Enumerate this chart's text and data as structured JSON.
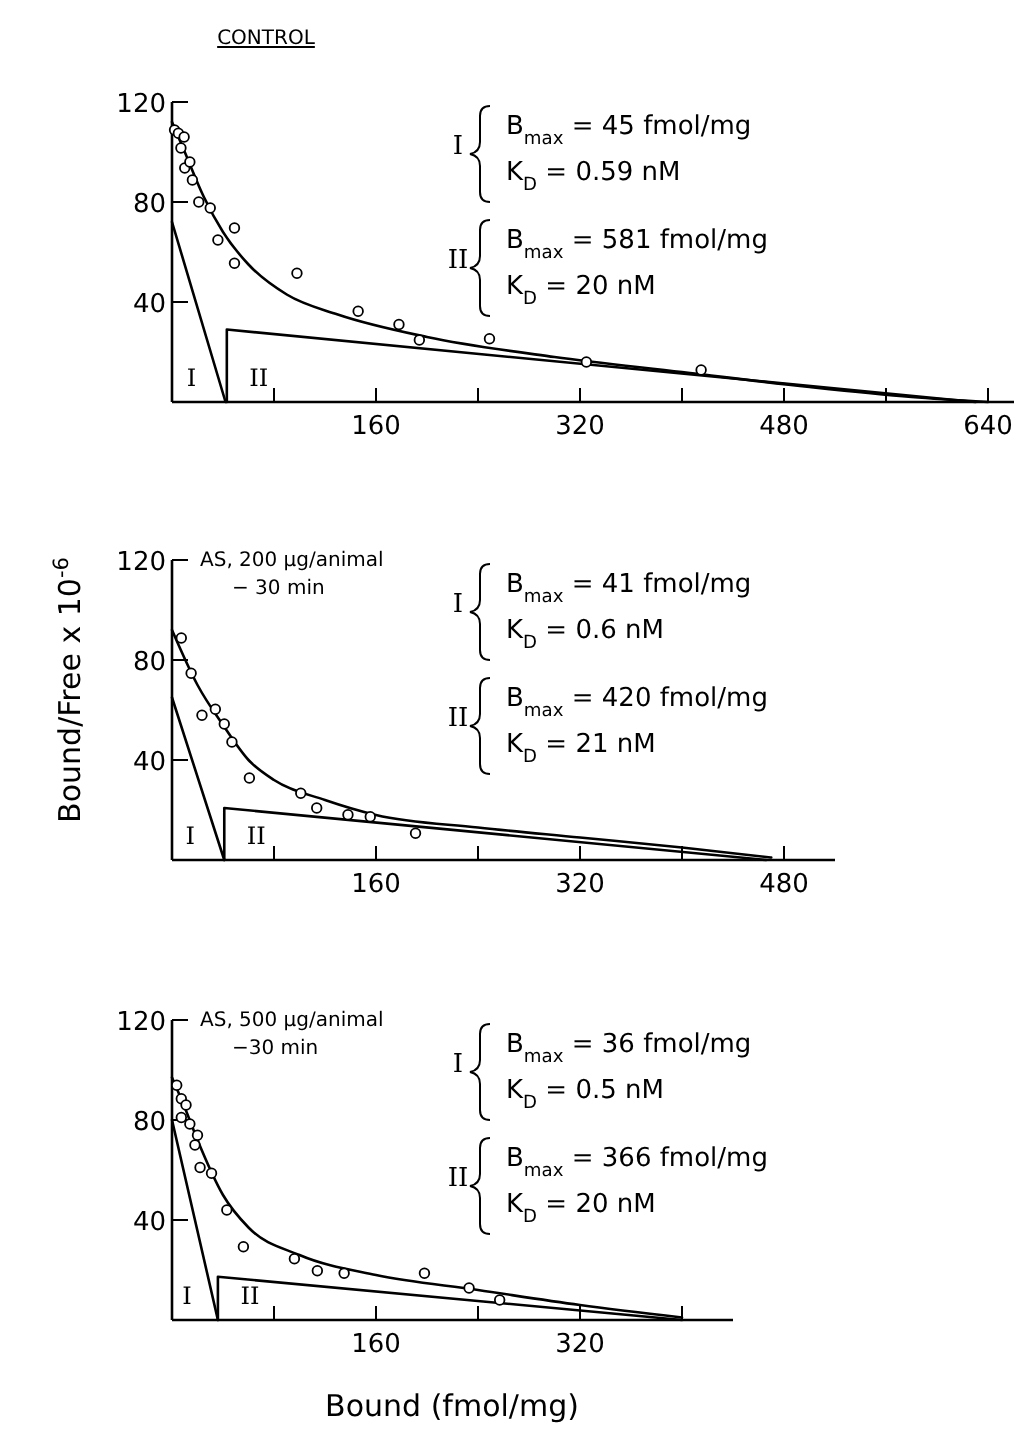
{
  "chart_data": [
    {
      "type": "line",
      "title": "CONTROL",
      "xlim": [
        0,
        665
      ],
      "ylim": [
        0,
        120
      ],
      "xticks": [
        {
          "value": 80,
          "label": null
        },
        160,
        {
          "value": 240,
          "label": null
        },
        320,
        {
          "value": 400,
          "label": null
        },
        480,
        {
          "value": 560,
          "label": null
        },
        640
      ],
      "yticks": [
        40,
        80,
        120
      ],
      "series": [
        {
          "type": "scatter",
          "marker": "circle",
          "color": "#000000",
          "x": [
            2,
            5,
            9.5,
            7,
            10,
            14,
            16,
            21,
            30,
            36,
            49,
            49,
            98,
            146,
            178,
            194,
            249,
            325,
            415
          ],
          "values": [
            108.8,
            107.5,
            106,
            101.6,
            93.6,
            96,
            88.8,
            80,
            77.6,
            64.8,
            69.6,
            55.5,
            51.5,
            36.3,
            31,
            24.8,
            25.3,
            16,
            12.8
          ]
        },
        {
          "color": "#000000",
          "x": [
            0,
            10,
            25,
            40,
            60,
            90,
            130,
            200,
            300,
            400,
            500,
            580,
            640
          ],
          "values": [
            112,
            100,
            82,
            68,
            55,
            43,
            35,
            26,
            18,
            12,
            6,
            2,
            0
          ]
        },
        {
          "color": "#000000",
          "x": [
            0,
            42
          ],
          "values": [
            72,
            0
          ]
        },
        {
          "color": "#000000",
          "x": [
            43,
            43,
            630
          ],
          "values": [
            0,
            29,
            0
          ]
        }
      ],
      "annotations": [
        "I",
        "B$_{max}$ = 45 fmol/mg",
        "K$_{D}$ = 0.59 nM",
        "II",
        "B$_{max}$ = 581 fmol/mg",
        "K$_{D}$ = 20 nM",
        "I",
        "II"
      ]
    },
    {
      "type": "line",
      "title": "AS, 200 µg/animal",
      "subtitle": "− 30 min",
      "ylabel": "Bound/Free x 10$^{-6}$",
      "xlim": [
        0,
        520
      ],
      "ylim": [
        0,
        120
      ],
      "xticks": [
        {
          "value": 80,
          "label": null
        },
        160,
        {
          "value": 240,
          "label": null
        },
        320,
        {
          "value": 400,
          "label": null
        },
        480
      ],
      "yticks": [
        40,
        80,
        120
      ],
      "series": [
        {
          "type": "scatter",
          "marker": "circle",
          "color": "#000000",
          "x": [
            7.3,
            15,
            23.5,
            34,
            41,
            47,
            60.7,
            101,
            113.5,
            138,
            155.5,
            191
          ],
          "values": [
            88.8,
            74.7,
            57.9,
            60.3,
            54.4,
            47.2,
            32.8,
            26.7,
            20.8,
            18.1,
            17.3,
            10.7
          ]
        },
        {
          "color": "#000000",
          "x": [
            0,
            20,
            40,
            60,
            80,
            120,
            160,
            240,
            320,
            400,
            470
          ],
          "values": [
            92,
            70,
            54,
            40,
            32,
            24,
            18,
            13,
            9,
            5,
            1
          ]
        },
        {
          "color": "#000000",
          "x": [
            0,
            41
          ],
          "values": [
            65,
            0
          ]
        },
        {
          "color": "#000000",
          "x": [
            41,
            41,
            466
          ],
          "values": [
            0,
            20.8,
            0
          ]
        }
      ],
      "annotations": [
        "I",
        "B$_{max}$ = 41 fmol/mg",
        "K$_{D}$ = 0.6 nM",
        "II",
        "B$_{max}$ = 420 fmol/mg",
        "K$_{D}$ = 21 nM",
        "I",
        "II"
      ]
    },
    {
      "type": "line",
      "title": "AS, 500 µg/animal",
      "subtitle": "−30 min",
      "xlabel": "Bound (fmol/mg)",
      "xlim": [
        0,
        440
      ],
      "ylim": [
        0,
        120
      ],
      "xticks": [
        {
          "value": 80,
          "label": null
        },
        160,
        {
          "value": 240,
          "label": null
        },
        320,
        {
          "value": 400,
          "label": null
        }
      ],
      "yticks": [
        40,
        80,
        120
      ],
      "series": [
        {
          "type": "scatter",
          "marker": "circle",
          "color": "#000000",
          "x": [
            3.7,
            7.3,
            11,
            7.3,
            14,
            20,
            18,
            22,
            31,
            43,
            56,
            96,
            114,
            135,
            198,
            233,
            257
          ],
          "values": [
            93.9,
            88.5,
            86,
            81,
            78.4,
            73.9,
            70,
            61,
            58.7,
            44,
            29.3,
            24.5,
            19.7,
            18.7,
            18.7,
            12.8,
            8
          ]
        },
        {
          "color": "#000000",
          "x": [
            0,
            10,
            20,
            40,
            60,
            100,
            160,
            240,
            320,
            400
          ],
          "values": [
            97,
            85,
            72,
            50,
            37,
            26,
            18,
            12,
            6,
            1
          ]
        },
        {
          "color": "#000000",
          "x": [
            0,
            36
          ],
          "values": [
            80,
            0
          ]
        },
        {
          "color": "#000000",
          "x": [
            36,
            36,
            400
          ],
          "values": [
            0,
            17.3,
            0
          ]
        }
      ],
      "annotations": [
        "I",
        "B$_{max}$ = 36 fmol/mg",
        "K$_{D}$ = 0.5 nM",
        "II",
        "B$_{max}$ = 366 fmol/mg",
        "K$_{D}$ = 20 nM",
        "I",
        "II"
      ]
    }
  ]
}
